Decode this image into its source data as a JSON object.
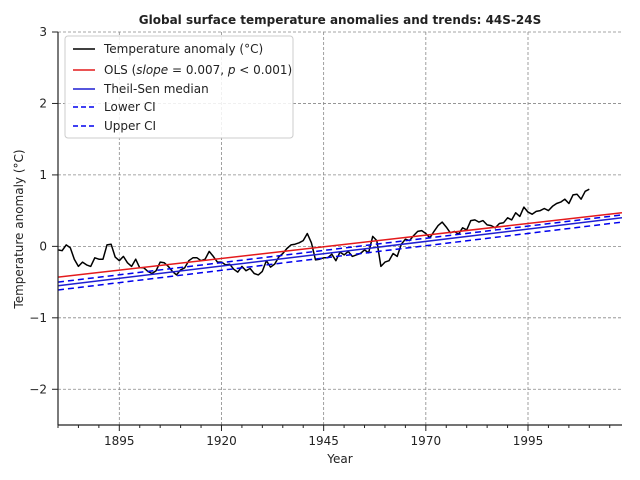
{
  "chart_data": {
    "type": "line",
    "title": "Global surface temperature anomalies and trends: 44S-24S",
    "xlabel": "Year",
    "ylabel": "Temperature anomaly (°C)",
    "xlim": [
      1880,
      2018
    ],
    "ylim": [
      -2.5,
      3.0
    ],
    "x_ticks": [
      1895,
      1920,
      1945,
      1970,
      1995
    ],
    "x_tick_labels": [
      "1895",
      "1920",
      "1945",
      "1970",
      "1995"
    ],
    "x_minor_step": 5,
    "y_ticks": [
      -2,
      -1,
      0,
      1,
      2,
      3
    ],
    "y_tick_labels": [
      "−2",
      "−1",
      "0",
      "1",
      "2",
      "3"
    ],
    "grid": true,
    "legend_position": "top-left",
    "colors": {
      "anomaly": "#000000",
      "ols": "#e41a1c",
      "theil_sen": "#1f1fd2",
      "ci": "#0000ee"
    },
    "series": [
      {
        "name": "Temperature anomaly (°C)",
        "key": "anomaly",
        "style": "solid",
        "x_start": 1880,
        "x_step": 1,
        "values": [
          -0.05,
          -0.06,
          0.02,
          -0.02,
          -0.18,
          -0.28,
          -0.22,
          -0.26,
          -0.28,
          -0.16,
          -0.18,
          -0.18,
          0.02,
          0.03,
          -0.15,
          -0.2,
          -0.14,
          -0.23,
          -0.28,
          -0.18,
          -0.3,
          -0.3,
          -0.35,
          -0.38,
          -0.34,
          -0.22,
          -0.23,
          -0.28,
          -0.35,
          -0.4,
          -0.33,
          -0.3,
          -0.2,
          -0.16,
          -0.16,
          -0.2,
          -0.18,
          -0.07,
          -0.14,
          -0.22,
          -0.22,
          -0.26,
          -0.25,
          -0.32,
          -0.36,
          -0.28,
          -0.34,
          -0.31,
          -0.38,
          -0.4,
          -0.35,
          -0.2,
          -0.29,
          -0.25,
          -0.15,
          -0.1,
          -0.03,
          0.02,
          0.03,
          0.05,
          0.08,
          0.18,
          0.05,
          -0.19,
          -0.18,
          -0.16,
          -0.16,
          -0.11,
          -0.2,
          -0.08,
          -0.12,
          -0.07,
          -0.14,
          -0.12,
          -0.1,
          -0.05,
          -0.09,
          0.14,
          0.08,
          -0.28,
          -0.22,
          -0.2,
          -0.1,
          -0.14,
          0.03,
          0.1,
          0.08,
          0.15,
          0.21,
          0.22,
          0.18,
          0.12,
          0.21,
          0.29,
          0.34,
          0.27,
          0.19,
          0.21,
          0.17,
          0.26,
          0.23,
          0.36,
          0.37,
          0.34,
          0.36,
          0.3,
          0.29,
          0.26,
          0.32,
          0.33,
          0.4,
          0.37,
          0.47,
          0.42,
          0.55,
          0.48,
          0.45,
          0.49,
          0.5,
          0.53,
          0.5,
          0.56,
          0.6,
          0.62,
          0.66,
          0.6,
          0.72,
          0.73,
          0.66,
          0.77,
          0.8
        ]
      },
      {
        "name": "OLS ($slope = 0.007, p < 0.001$)",
        "key": "ols",
        "style": "solid",
        "x": [
          1880,
          2018
        ],
        "y": [
          -0.43,
          0.47
        ]
      },
      {
        "name": "Theil-Sen median",
        "key": "theil_sen",
        "style": "solid",
        "x": [
          1880,
          2018
        ],
        "y": [
          -0.55,
          0.4
        ]
      },
      {
        "name": "Lower CI",
        "key": "ci",
        "style": "dashed",
        "x": [
          1880,
          2018
        ],
        "y": [
          -0.61,
          0.34
        ]
      },
      {
        "name": "Upper CI",
        "key": "ci",
        "style": "dashed",
        "x": [
          1880,
          2018
        ],
        "y": [
          -0.5,
          0.44
        ]
      }
    ]
  },
  "legend": {
    "anomaly_label": "Temperature anomaly (°C)",
    "ols_prefix": "OLS (",
    "ols_slope_word": "slope",
    "ols_slope_value": " = 0.007, ",
    "ols_p_word": "p",
    "ols_p_value": " < 0.001)",
    "theil_sen_label": "Theil-Sen median",
    "lower_ci_label": "Lower CI",
    "upper_ci_label": "Upper CI"
  }
}
